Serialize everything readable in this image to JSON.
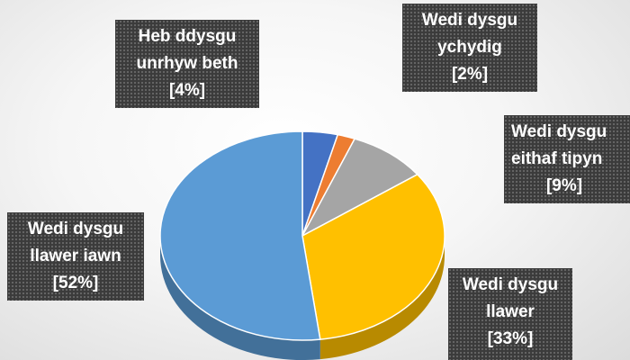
{
  "chart_data": {
    "type": "pie",
    "slices": [
      {
        "label_line1": "Heb ddysgu",
        "label_line2": "unrhyw beth",
        "value_text": "[4%]",
        "value": 4,
        "color": "#4472c4"
      },
      {
        "label_line1": "Wedi dysgu",
        "label_line2": "ychydig",
        "value_text": "[2%]",
        "value": 2,
        "color": "#ed7d31"
      },
      {
        "label_line1": "Wedi dysgu",
        "label_line2": "eithaf tipyn",
        "value_text": "[9%]",
        "value": 9,
        "color": "#a5a5a5"
      },
      {
        "label_line1": "Wedi dysgu",
        "label_line2": "llawer",
        "value_text": "[33%]",
        "value": 33,
        "color": "#ffc000"
      },
      {
        "label_line1": "Wedi dysgu",
        "label_line2": "llawer iawn",
        "value_text": "[52%]",
        "value": 52,
        "color": "#5b9bd5"
      }
    ],
    "legend": "none",
    "style": "3d-pie"
  }
}
